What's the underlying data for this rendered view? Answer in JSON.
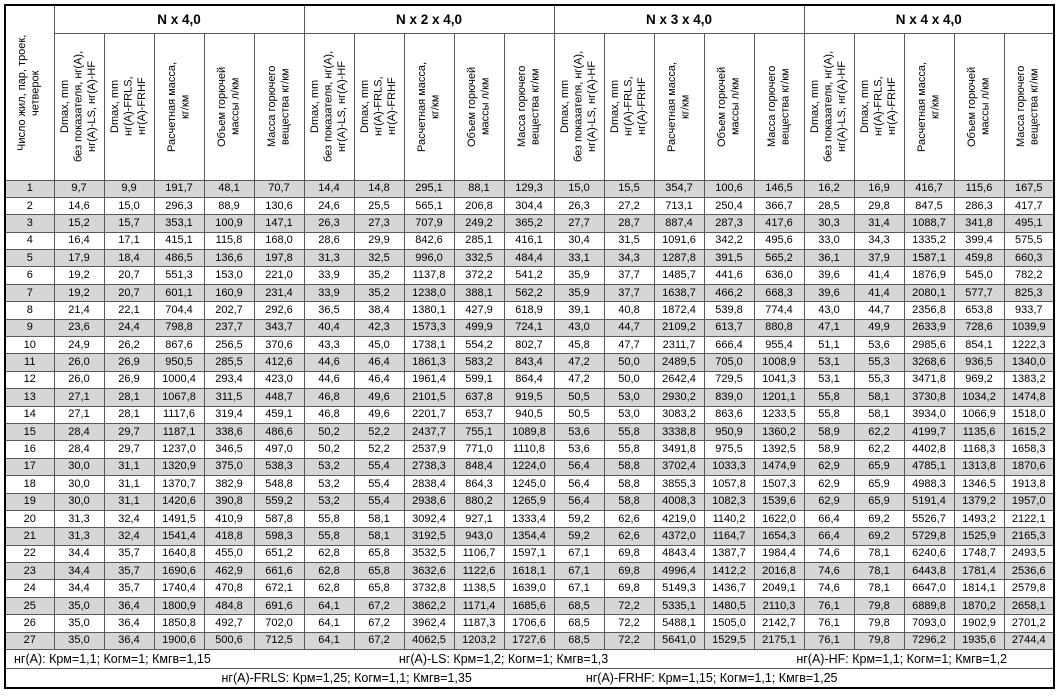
{
  "table": {
    "corner_lines": [
      "Число жил, пар, троек,",
      "четверок"
    ],
    "groups": [
      "N x 4,0",
      "N x 2 x 4,0",
      "N x 3 x 4,0",
      "N x 4 x 4,0"
    ],
    "subheaders": [
      [
        "Dmax, mm",
        "без показателя, нг(А),",
        "нг(А)-LS, нг(А)-HF"
      ],
      [
        "Dmax, mm",
        "нг(А)-FRLS,",
        "нг(А)-FRHF"
      ],
      [
        "Расчетная масса,",
        "кг/км"
      ],
      [
        "Объем горючей",
        "массы л/км"
      ],
      [
        "Масса горючего",
        "вещества кг/км"
      ]
    ],
    "rows": [
      [
        "1",
        "9,7",
        "9,9",
        "191,7",
        "48,1",
        "70,7",
        "14,4",
        "14,8",
        "295,1",
        "88,1",
        "129,3",
        "15,0",
        "15,5",
        "354,7",
        "100,6",
        "146,5",
        "16,2",
        "16,9",
        "416,7",
        "115,6",
        "167,5"
      ],
      [
        "2",
        "14,6",
        "15,0",
        "296,3",
        "88,9",
        "130,6",
        "24,6",
        "25,5",
        "565,1",
        "206,8",
        "304,4",
        "26,3",
        "27,2",
        "713,1",
        "250,4",
        "366,7",
        "28,5",
        "29,8",
        "847,5",
        "286,3",
        "417,7"
      ],
      [
        "3",
        "15,2",
        "15,7",
        "353,1",
        "100,9",
        "147,1",
        "26,3",
        "27,3",
        "707,9",
        "249,2",
        "365,2",
        "27,7",
        "28,7",
        "887,4",
        "287,3",
        "417,6",
        "30,3",
        "31,4",
        "1088,7",
        "341,8",
        "495,1"
      ],
      [
        "4",
        "16,4",
        "17,1",
        "415,1",
        "115,8",
        "168,0",
        "28,6",
        "29,9",
        "842,6",
        "285,1",
        "416,1",
        "30,4",
        "31,5",
        "1091,6",
        "342,2",
        "495,6",
        "33,0",
        "34,3",
        "1335,2",
        "399,4",
        "575,5"
      ],
      [
        "5",
        "17,9",
        "18,4",
        "486,5",
        "136,6",
        "197,8",
        "31,3",
        "32,5",
        "996,0",
        "332,5",
        "484,4",
        "33,1",
        "34,3",
        "1287,8",
        "391,5",
        "565,2",
        "36,1",
        "37,9",
        "1587,1",
        "459,8",
        "660,3"
      ],
      [
        "6",
        "19,2",
        "20,7",
        "551,3",
        "153,0",
        "221,0",
        "33,9",
        "35,2",
        "1137,8",
        "372,2",
        "541,2",
        "35,9",
        "37,7",
        "1485,7",
        "441,6",
        "636,0",
        "39,6",
        "41,4",
        "1876,9",
        "545,0",
        "782,2"
      ],
      [
        "7",
        "19,2",
        "20,7",
        "601,1",
        "160,9",
        "231,4",
        "33,9",
        "35,2",
        "1238,0",
        "388,1",
        "562,2",
        "35,9",
        "37,7",
        "1638,7",
        "466,2",
        "668,3",
        "39,6",
        "41,4",
        "2080,1",
        "577,7",
        "825,3"
      ],
      [
        "8",
        "21,4",
        "22,1",
        "704,4",
        "202,7",
        "292,6",
        "36,5",
        "38,4",
        "1380,1",
        "427,9",
        "618,9",
        "39,1",
        "40,8",
        "1872,4",
        "539,8",
        "774,4",
        "43,0",
        "44,7",
        "2356,8",
        "653,8",
        "933,7"
      ],
      [
        "9",
        "23,6",
        "24,4",
        "798,8",
        "237,7",
        "343,7",
        "40,4",
        "42,3",
        "1573,3",
        "499,9",
        "724,1",
        "43,0",
        "44,7",
        "2109,2",
        "613,7",
        "880,8",
        "47,1",
        "49,9",
        "2633,9",
        "728,6",
        "1039,9"
      ],
      [
        "10",
        "24,9",
        "26,2",
        "867,6",
        "256,5",
        "370,6",
        "43,3",
        "45,0",
        "1738,1",
        "554,2",
        "802,7",
        "45,8",
        "47,7",
        "2311,7",
        "666,4",
        "955,4",
        "51,1",
        "53,6",
        "2985,6",
        "854,1",
        "1222,3"
      ],
      [
        "11",
        "26,0",
        "26,9",
        "950,5",
        "285,5",
        "412,6",
        "44,6",
        "46,4",
        "1861,3",
        "583,2",
        "843,4",
        "47,2",
        "50,0",
        "2489,5",
        "705,0",
        "1008,9",
        "53,1",
        "55,3",
        "3268,6",
        "936,5",
        "1340,0"
      ],
      [
        "12",
        "26,0",
        "26,9",
        "1000,4",
        "293,4",
        "423,0",
        "44,6",
        "46,4",
        "1961,4",
        "599,1",
        "864,4",
        "47,2",
        "50,0",
        "2642,4",
        "729,5",
        "1041,3",
        "53,1",
        "55,3",
        "3471,8",
        "969,2",
        "1383,2"
      ],
      [
        "13",
        "27,1",
        "28,1",
        "1067,8",
        "311,5",
        "448,7",
        "46,8",
        "49,6",
        "2101,5",
        "637,8",
        "919,5",
        "50,5",
        "53,0",
        "2930,2",
        "839,0",
        "1201,1",
        "55,8",
        "58,1",
        "3730,8",
        "1034,2",
        "1474,8"
      ],
      [
        "14",
        "27,1",
        "28,1",
        "1117,6",
        "319,4",
        "459,1",
        "46,8",
        "49,6",
        "2201,7",
        "653,7",
        "940,5",
        "50,5",
        "53,0",
        "3083,2",
        "863,6",
        "1233,5",
        "55,8",
        "58,1",
        "3934,0",
        "1066,9",
        "1518,0"
      ],
      [
        "15",
        "28,4",
        "29,7",
        "1187,1",
        "338,6",
        "486,6",
        "50,2",
        "52,2",
        "2437,7",
        "755,1",
        "1089,8",
        "53,6",
        "55,8",
        "3338,8",
        "950,9",
        "1360,2",
        "58,9",
        "62,2",
        "4199,7",
        "1135,6",
        "1615,2"
      ],
      [
        "16",
        "28,4",
        "29,7",
        "1237,0",
        "346,5",
        "497,0",
        "50,2",
        "52,2",
        "2537,9",
        "771,0",
        "1110,8",
        "53,6",
        "55,8",
        "3491,8",
        "975,5",
        "1392,5",
        "58,9",
        "62,2",
        "4402,8",
        "1168,3",
        "1658,3"
      ],
      [
        "17",
        "30,0",
        "31,1",
        "1320,9",
        "375,0",
        "538,3",
        "53,2",
        "55,4",
        "2738,3",
        "848,4",
        "1224,0",
        "56,4",
        "58,8",
        "3702,4",
        "1033,3",
        "1474,9",
        "62,9",
        "65,9",
        "4785,1",
        "1313,8",
        "1870,6"
      ],
      [
        "18",
        "30,0",
        "31,1",
        "1370,7",
        "382,9",
        "548,8",
        "53,2",
        "55,4",
        "2838,4",
        "864,3",
        "1245,0",
        "56,4",
        "58,8",
        "3855,3",
        "1057,8",
        "1507,3",
        "62,9",
        "65,9",
        "4988,3",
        "1346,5",
        "1913,8"
      ],
      [
        "19",
        "30,0",
        "31,1",
        "1420,6",
        "390,8",
        "559,2",
        "53,2",
        "55,4",
        "2938,6",
        "880,2",
        "1265,9",
        "56,4",
        "58,8",
        "4008,3",
        "1082,3",
        "1539,6",
        "62,9",
        "65,9",
        "5191,4",
        "1379,2",
        "1957,0"
      ],
      [
        "20",
        "31,3",
        "32,4",
        "1491,5",
        "410,9",
        "587,8",
        "55,8",
        "58,1",
        "3092,4",
        "927,1",
        "1333,4",
        "59,2",
        "62,6",
        "4219,0",
        "1140,2",
        "1622,0",
        "66,4",
        "69,2",
        "5526,7",
        "1493,2",
        "2122,1"
      ],
      [
        "21",
        "31,3",
        "32,4",
        "1541,4",
        "418,8",
        "598,3",
        "55,8",
        "58,1",
        "3192,5",
        "943,0",
        "1354,4",
        "59,2",
        "62,6",
        "4372,0",
        "1164,7",
        "1654,3",
        "66,4",
        "69,2",
        "5729,8",
        "1525,9",
        "2165,3"
      ],
      [
        "22",
        "34,4",
        "35,7",
        "1640,8",
        "455,0",
        "651,2",
        "62,8",
        "65,8",
        "3532,5",
        "1106,7",
        "1597,1",
        "67,1",
        "69,8",
        "4843,4",
        "1387,7",
        "1984,4",
        "74,6",
        "78,1",
        "6240,6",
        "1748,7",
        "2493,5"
      ],
      [
        "23",
        "34,4",
        "35,7",
        "1690,6",
        "462,9",
        "661,6",
        "62,8",
        "65,8",
        "3632,6",
        "1122,6",
        "1618,1",
        "67,1",
        "69,8",
        "4996,4",
        "1412,2",
        "2016,8",
        "74,6",
        "78,1",
        "6443,8",
        "1781,4",
        "2536,6"
      ],
      [
        "24",
        "34,4",
        "35,7",
        "1740,4",
        "470,8",
        "672,1",
        "62,8",
        "65,8",
        "3732,8",
        "1138,5",
        "1639,0",
        "67,1",
        "69,8",
        "5149,3",
        "1436,7",
        "2049,1",
        "74,6",
        "78,1",
        "6647,0",
        "1814,1",
        "2579,8"
      ],
      [
        "25",
        "35,0",
        "36,4",
        "1800,9",
        "484,8",
        "691,6",
        "64,1",
        "67,2",
        "3862,2",
        "1171,4",
        "1685,6",
        "68,5",
        "72,2",
        "5335,1",
        "1480,5",
        "2110,3",
        "76,1",
        "79,8",
        "6889,8",
        "1870,2",
        "2658,1"
      ],
      [
        "26",
        "35,0",
        "36,4",
        "1850,8",
        "492,7",
        "702,0",
        "64,1",
        "67,2",
        "3962,4",
        "1187,3",
        "1706,6",
        "68,5",
        "72,2",
        "5488,1",
        "1505,0",
        "2142,7",
        "76,1",
        "79,8",
        "7093,0",
        "1902,9",
        "2701,2"
      ],
      [
        "27",
        "35,0",
        "36,4",
        "1900,6",
        "500,6",
        "712,5",
        "64,1",
        "67,2",
        "4062,5",
        "1203,2",
        "1727,6",
        "68,5",
        "72,2",
        "5641,0",
        "1529,5",
        "2175,1",
        "76,1",
        "79,8",
        "7296,2",
        "1935,6",
        "2744,4"
      ]
    ],
    "footer": {
      "line1": [
        "нг(А): Крм=1,1;  Когм=1;  Кмгв=1,15",
        "нг(А)-LS: Крм=1,2;  Когм=1;  Кмгв=1,3",
        "нг(А)-HF: Крм=1,1;  Когм=1;  Кмгв=1,2"
      ],
      "line2": [
        "нг(А)-FRLS: Крм=1,25;  Когм=1,1;  Кмгв=1,35",
        "нг(А)-FRHF: Крм=1,15;  Когм=1,1;  Кмгв=1,25"
      ]
    }
  },
  "colors": {
    "stripe": "#d6d6d6",
    "grid_line": "#595959",
    "major_line": "#000000",
    "background": "#ffffff"
  }
}
